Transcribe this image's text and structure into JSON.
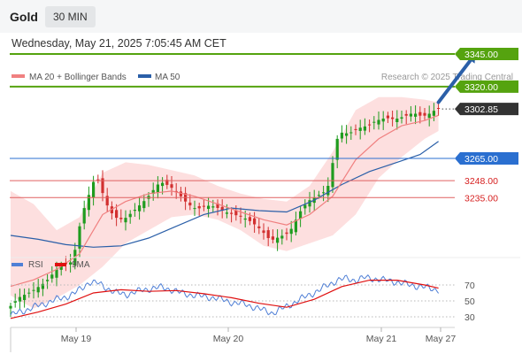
{
  "header": {
    "symbol": "Gold",
    "timeframe": "30 MIN",
    "datetime": "Wednesday, May 21, 2025 7:05:45 AM CET"
  },
  "legend": {
    "ma20_bb": "MA 20 + Bollinger Bands",
    "ma50": "MA 50",
    "rsi": "RSI",
    "rsi_ma": "9MA",
    "credit": "Research © 2025 Trading Central"
  },
  "colors": {
    "ma20": "#f08080",
    "band_fill": "#fcd4d4",
    "ma50": "#2a5fa8",
    "resistance": "#55a30f",
    "support": "#e06060",
    "pivot": "#2a6fd0",
    "arrow": "#2b5fa8",
    "candle_up": "#1f9c1f",
    "candle_down": "#d23030",
    "rsi": "#4f7fd6",
    "rsi_ma": "#e01010",
    "price_tag": "#333333"
  },
  "chart_data": [
    {
      "type": "candlestick",
      "title": "Gold 30 MIN",
      "x_ticks": [
        "May 19",
        "May 20",
        "May 21",
        "May 27"
      ],
      "ylim": [
        3140,
        3368
      ],
      "levels": [
        {
          "label": "3345.00",
          "value": 3345.0,
          "kind": "resistance"
        },
        {
          "label": "3320.00",
          "value": 3320.0,
          "kind": "resistance"
        },
        {
          "label": "3302.85",
          "value": 3302.85,
          "kind": "last_price"
        },
        {
          "label": "3265.00",
          "value": 3265.0,
          "kind": "pivot"
        },
        {
          "label": "3248.00",
          "value": 3248.0,
          "kind": "support"
        },
        {
          "label": "3235.00",
          "value": 3235.0,
          "kind": "support"
        }
      ],
      "price_path": [
        [
          0,
          3150
        ],
        [
          2,
          3158
        ],
        [
          5,
          3163
        ],
        [
          8,
          3170
        ],
        [
          11,
          3182
        ],
        [
          14,
          3186
        ],
        [
          16,
          3222
        ],
        [
          18,
          3242
        ],
        [
          19,
          3252
        ],
        [
          20,
          3245
        ],
        [
          21,
          3232
        ],
        [
          23,
          3220
        ],
        [
          25,
          3218
        ],
        [
          27,
          3224
        ],
        [
          30,
          3234
        ],
        [
          32,
          3243
        ],
        [
          33,
          3247
        ],
        [
          35,
          3244
        ],
        [
          37,
          3238
        ],
        [
          39,
          3230
        ],
        [
          41,
          3226
        ],
        [
          43,
          3229
        ],
        [
          45,
          3228
        ],
        [
          47,
          3224
        ],
        [
          49,
          3222
        ],
        [
          51,
          3220
        ],
        [
          53,
          3216
        ],
        [
          55,
          3210
        ],
        [
          57,
          3202
        ],
        [
          59,
          3205
        ],
        [
          61,
          3208
        ],
        [
          62,
          3214
        ],
        [
          63,
          3222
        ],
        [
          65,
          3232
        ],
        [
          67,
          3236
        ],
        [
          69,
          3240
        ],
        [
          70,
          3248
        ],
        [
          71,
          3275
        ],
        [
          72,
          3285
        ],
        [
          74,
          3284
        ],
        [
          76,
          3288
        ],
        [
          78,
          3290
        ],
        [
          80,
          3294
        ],
        [
          82,
          3296
        ],
        [
          84,
          3295
        ],
        [
          86,
          3297
        ],
        [
          88,
          3300
        ],
        [
          90,
          3297
        ],
        [
          92,
          3300
        ],
        [
          93,
          3303
        ]
      ],
      "ma50_path": [
        [
          0,
          3206
        ],
        [
          6,
          3203
        ],
        [
          12,
          3199
        ],
        [
          18,
          3197
        ],
        [
          24,
          3198
        ],
        [
          30,
          3204
        ],
        [
          36,
          3213
        ],
        [
          42,
          3222
        ],
        [
          48,
          3227
        ],
        [
          54,
          3225
        ],
        [
          60,
          3224
        ],
        [
          66,
          3233
        ],
        [
          72,
          3245
        ],
        [
          78,
          3255
        ],
        [
          84,
          3262
        ],
        [
          89,
          3268
        ],
        [
          93,
          3278
        ]
      ],
      "ma20_path": [
        [
          0,
          3167
        ],
        [
          5,
          3172
        ],
        [
          10,
          3180
        ],
        [
          15,
          3192
        ],
        [
          20,
          3222
        ],
        [
          25,
          3232
        ],
        [
          30,
          3238
        ],
        [
          35,
          3240
        ],
        [
          40,
          3236
        ],
        [
          45,
          3230
        ],
        [
          50,
          3224
        ],
        [
          55,
          3218
        ],
        [
          60,
          3214
        ],
        [
          65,
          3222
        ],
        [
          70,
          3236
        ],
        [
          75,
          3264
        ],
        [
          80,
          3280
        ],
        [
          85,
          3290
        ],
        [
          90,
          3294
        ],
        [
          93,
          3298
        ]
      ],
      "band_upper_path": [
        [
          0,
          3240
        ],
        [
          5,
          3230
        ],
        [
          10,
          3210
        ],
        [
          15,
          3220
        ],
        [
          20,
          3254
        ],
        [
          25,
          3262
        ],
        [
          30,
          3260
        ],
        [
          35,
          3256
        ],
        [
          40,
          3252
        ],
        [
          45,
          3244
        ],
        [
          50,
          3238
        ],
        [
          55,
          3234
        ],
        [
          60,
          3232
        ],
        [
          65,
          3244
        ],
        [
          70,
          3270
        ],
        [
          75,
          3302
        ],
        [
          80,
          3312
        ],
        [
          85,
          3312
        ],
        [
          90,
          3310
        ],
        [
          93,
          3308
        ]
      ],
      "band_lower_path": [
        [
          0,
          3160
        ],
        [
          5,
          3150
        ],
        [
          10,
          3158
        ],
        [
          15,
          3168
        ],
        [
          20,
          3182
        ],
        [
          25,
          3200
        ],
        [
          30,
          3210
        ],
        [
          35,
          3220
        ],
        [
          40,
          3222
        ],
        [
          45,
          3218
        ],
        [
          50,
          3210
        ],
        [
          55,
          3198
        ],
        [
          60,
          3194
        ],
        [
          65,
          3200
        ],
        [
          70,
          3206
        ],
        [
          75,
          3222
        ],
        [
          80,
          3250
        ],
        [
          85,
          3266
        ],
        [
          90,
          3280
        ],
        [
          93,
          3286
        ]
      ],
      "forecast_arrow": [
        [
          93,
          3308
        ],
        [
          101,
          3345
        ]
      ]
    },
    {
      "type": "line",
      "title": "RSI",
      "ylim": [
        10,
        90
      ],
      "y_ticks": [
        70,
        50,
        30
      ],
      "rsi_path": [
        [
          0,
          32
        ],
        [
          3,
          38
        ],
        [
          6,
          44
        ],
        [
          9,
          50
        ],
        [
          12,
          55
        ],
        [
          14,
          60
        ],
        [
          16,
          68
        ],
        [
          17,
          74
        ],
        [
          19,
          72
        ],
        [
          21,
          66
        ],
        [
          23,
          60
        ],
        [
          25,
          58
        ],
        [
          27,
          61
        ],
        [
          29,
          64
        ],
        [
          31,
          66
        ],
        [
          33,
          67
        ],
        [
          35,
          64
        ],
        [
          37,
          60
        ],
        [
          39,
          58
        ],
        [
          41,
          56
        ],
        [
          43,
          55
        ],
        [
          45,
          53
        ],
        [
          47,
          50
        ],
        [
          49,
          47
        ],
        [
          51,
          46
        ],
        [
          53,
          42
        ],
        [
          55,
          38
        ],
        [
          57,
          35
        ],
        [
          59,
          40
        ],
        [
          61,
          46
        ],
        [
          63,
          52
        ],
        [
          65,
          58
        ],
        [
          67,
          63
        ],
        [
          69,
          70
        ],
        [
          71,
          76
        ],
        [
          73,
          78
        ],
        [
          75,
          76
        ],
        [
          77,
          79
        ],
        [
          79,
          78
        ],
        [
          81,
          76
        ],
        [
          83,
          75
        ],
        [
          85,
          72
        ],
        [
          87,
          70
        ],
        [
          89,
          68
        ],
        [
          91,
          66
        ],
        [
          93,
          64
        ]
      ],
      "rsi_ma_path": [
        [
          0,
          28
        ],
        [
          6,
          36
        ],
        [
          12,
          46
        ],
        [
          18,
          60
        ],
        [
          24,
          64
        ],
        [
          30,
          62
        ],
        [
          36,
          63
        ],
        [
          42,
          59
        ],
        [
          48,
          54
        ],
        [
          54,
          47
        ],
        [
          60,
          42
        ],
        [
          66,
          52
        ],
        [
          72,
          68
        ],
        [
          78,
          76
        ],
        [
          84,
          76
        ],
        [
          90,
          70
        ],
        [
          93,
          66
        ]
      ]
    }
  ]
}
